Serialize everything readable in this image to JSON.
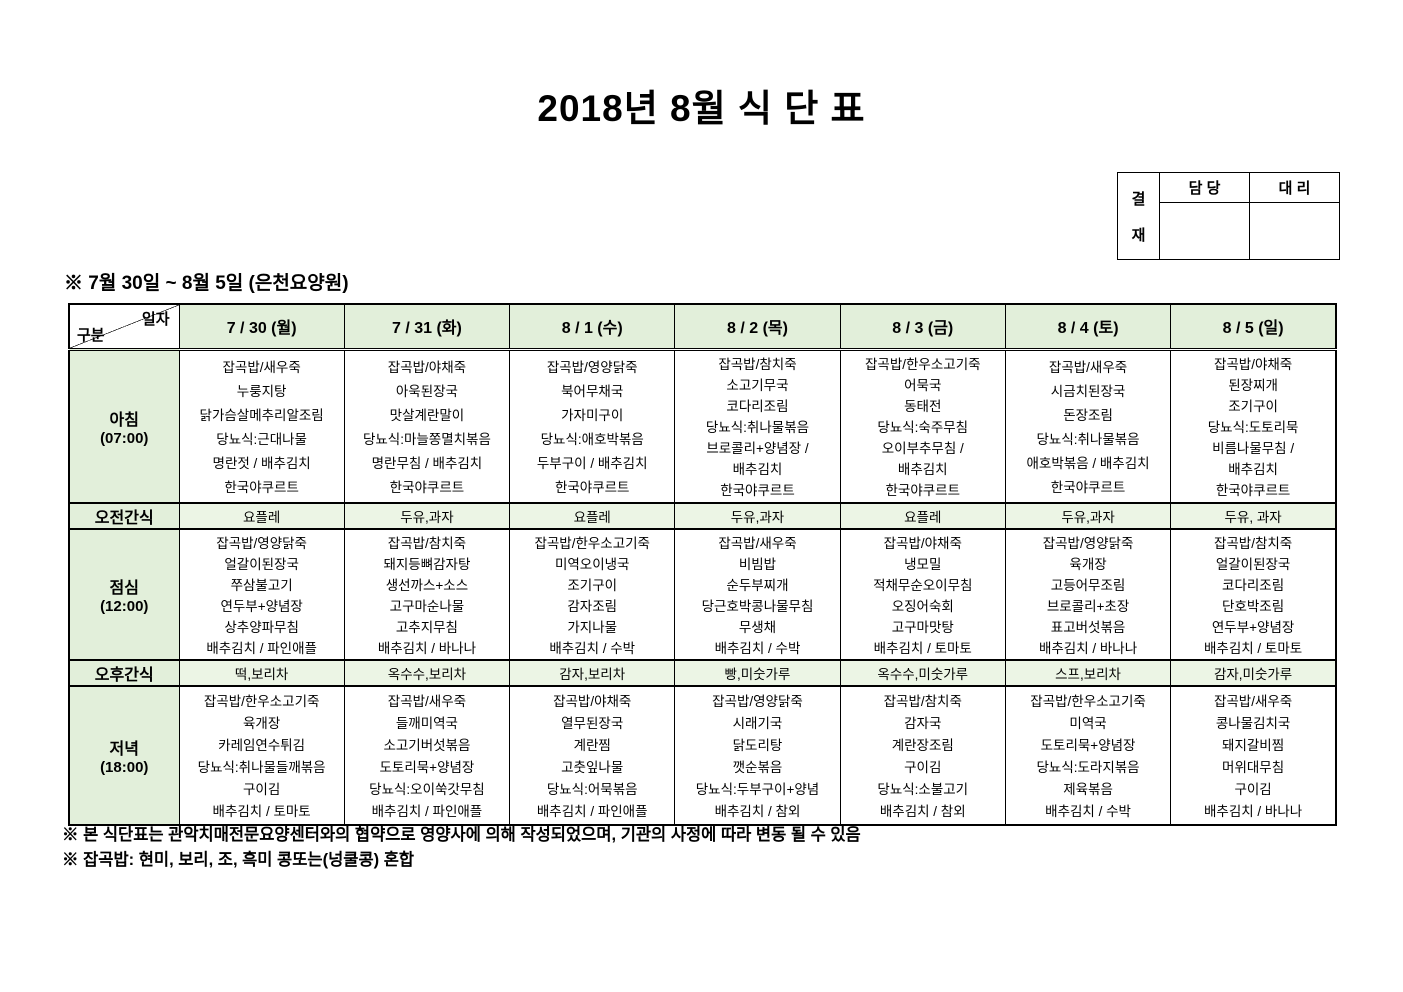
{
  "title": "2018년 8월 식 단 표",
  "approval": {
    "label_chars": [
      "결",
      "재"
    ],
    "manager": "담 당",
    "deputy": "대 리"
  },
  "subtitle": "※  7월  30일  ~  8월  5일  (은천요양원)",
  "table": {
    "corner": {
      "top": "일자",
      "bottom": "구분"
    },
    "columns": [
      "7 / 30 (월)",
      "7 / 31 (화)",
      "8 / 1 (수)",
      "8 / 2 (목)",
      "8 / 3 (금)",
      "8 / 4 (토)",
      "8 / 5 (일)"
    ],
    "rows": [
      {
        "key": "breakfast",
        "type": "meal",
        "label": "아침",
        "time": "(07:00)",
        "cells": [
          [
            "잡곡밥/새우죽",
            "누룽지탕",
            "닭가슴살메추리알조림",
            "당뇨식:근대나물",
            "명란젓 / 배추김치",
            "한국야쿠르트"
          ],
          [
            "잡곡밥/야채죽",
            "아욱된장국",
            "맛살계란말이",
            "당뇨식:마늘쫑멸치볶음",
            "명란무침 / 배추김치",
            "한국야쿠르트"
          ],
          [
            "잡곡밥/영양닭죽",
            "북어무채국",
            "가자미구이",
            "당뇨식:애호박볶음",
            "두부구이 / 배추김치",
            "한국야쿠르트"
          ],
          [
            "잡곡밥/참치죽",
            "소고기무국",
            "코다리조림",
            "당뇨식:취나물볶음",
            "브로콜리+양념장 /",
            "배추김치",
            "한국야쿠르트"
          ],
          [
            "잡곡밥/한우소고기죽",
            "어묵국",
            "동태전",
            "당뇨식:숙주무침",
            "오이부추무침 /",
            "배추김치",
            "한국야쿠르트"
          ],
          [
            "잡곡밥/새우죽",
            "시금치된장국",
            "돈장조림",
            "당뇨식:취나물볶음",
            "애호박볶음 / 배추김치",
            "한국야쿠르트"
          ],
          [
            "잡곡밥/야채죽",
            "된장찌개",
            "조기구이",
            "당뇨식:도토리묵",
            "비름나물무침 /",
            "배추김치",
            "한국야쿠르트"
          ]
        ]
      },
      {
        "key": "morning-snack",
        "type": "snack",
        "label": "오전간식",
        "cells": [
          "요플레",
          "두유,과자",
          "요플레",
          "두유,과자",
          "요플레",
          "두유,과자",
          "두유, 과자"
        ]
      },
      {
        "key": "lunch",
        "type": "meal",
        "label": "점심",
        "time": "(12:00)",
        "cells": [
          [
            "잡곡밥/영양닭죽",
            "얼갈이된장국",
            "쭈삼불고기",
            "연두부+양념장",
            "상추양파무침",
            "배추김치 / 파인애플"
          ],
          [
            "잡곡밥/참치죽",
            "돼지등뼈감자탕",
            "생선까스+소스",
            "고구마순나물",
            "고추지무침",
            "배추김치 / 바나나"
          ],
          [
            "잡곡밥/한우소고기죽",
            "미역오이냉국",
            "조기구이",
            "감자조림",
            "가지나물",
            "배추김치 / 수박"
          ],
          [
            "잡곡밥/새우죽",
            "비빔밥",
            "순두부찌개",
            "당근호박콩나물무침",
            "무생채",
            "배추김치 / 수박"
          ],
          [
            "잡곡밥/야채죽",
            "냉모밀",
            "적채무순오이무침",
            "오징어숙회",
            "고구마맛탕",
            "배추김치 / 토마토"
          ],
          [
            "잡곡밥/영양닭죽",
            "육개장",
            "고등어무조림",
            "브로콜리+초장",
            "표고버섯볶음",
            "배추김치 / 바나나"
          ],
          [
            "잡곡밥/참치죽",
            "얼갈이된장국",
            "코다리조림",
            "단호박조림",
            "연두부+양념장",
            "배추김치 / 토마토"
          ]
        ]
      },
      {
        "key": "afternoon-snack",
        "type": "snack",
        "label": "오후간식",
        "cells": [
          "떡,보리차",
          "옥수수,보리차",
          "감자,보리차",
          "빵,미숫가루",
          "옥수수,미숫가루",
          "스프,보리차",
          "감자,미숫가루"
        ]
      },
      {
        "key": "dinner",
        "type": "meal",
        "label": "저녁",
        "time": "(18:00)",
        "cells": [
          [
            "잡곡밥/한우소고기죽",
            "육개장",
            "카레임연수튀김",
            "당뇨식:취나물들깨볶음",
            "구이김",
            "배추김치 / 토마토"
          ],
          [
            "잡곡밥/새우죽",
            "들깨미역국",
            "소고기버섯볶음",
            "도토리묵+양념장",
            "당뇨식:오이쑥갓무침",
            "배추김치 / 파인애플"
          ],
          [
            "잡곡밥/야채죽",
            "열무된장국",
            "계란찜",
            "고춧잎나물",
            "당뇨식:어묵볶음",
            "배추김치 / 파인애플"
          ],
          [
            "잡곡밥/영양닭죽",
            "시래기국",
            "닭도리탕",
            "깻순볶음",
            "당뇨식:두부구이+양념",
            "배추김치 / 참외"
          ],
          [
            "잡곡밥/참치죽",
            "감자국",
            "계란장조림",
            "구이김",
            "당뇨식:소불고기",
            "배추김치 / 참외"
          ],
          [
            "잡곡밥/한우소고기죽",
            "미역국",
            "도토리묵+양념장",
            "당뇨식:도라지볶음",
            "제육볶음",
            "배추김치 / 수박"
          ],
          [
            "잡곡밥/새우죽",
            "콩나물김치국",
            "돼지갈비찜",
            "머위대무침",
            "구이김",
            "배추김치 / 바나나"
          ]
        ]
      }
    ]
  },
  "footnotes": [
    "※  본  식단표는  관악치매전문요양센터와의  협약으로  영양사에  의해  작성되었으며,  기관의  사정에  따라  변동  될  수  있음",
    "※  잡곡밥:  현미,  보리,  조,  흑미  콩또는(넝쿨콩)  혼합"
  ],
  "colors": {
    "header_green": "#E2EFDA",
    "snack_green": "#ECF5E5",
    "border": "#000000"
  }
}
